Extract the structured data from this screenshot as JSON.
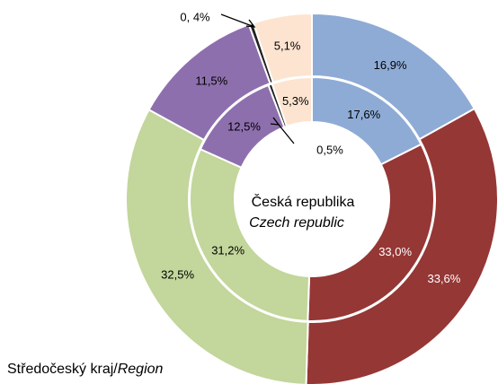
{
  "chart_data": {
    "type": "donut",
    "series": [
      {
        "name": "Středočeský kraj",
        "name_en": "Region",
        "ring": "outer",
        "values": [
          16.9,
          33.6,
          32.5,
          11.5,
          0.4,
          5.1
        ],
        "value_labels": [
          "16,9%",
          "33,6%",
          "32,5%",
          "11,5%",
          "0, 4%",
          "5,1%"
        ]
      },
      {
        "name": "Česká republika",
        "name_en": "Czech republic",
        "ring": "inner",
        "values": [
          17.6,
          33.0,
          31.2,
          12.5,
          0.5,
          5.3
        ],
        "value_labels": [
          "17,6%",
          "33,0%",
          "31,2%",
          "12,5%",
          "0,5%",
          "5,3%"
        ]
      }
    ],
    "colors": [
      "#8eabd6",
      "#953735",
      "#c3d69b",
      "#8e6fae",
      "#222222",
      "#fde4d0"
    ]
  }
}
